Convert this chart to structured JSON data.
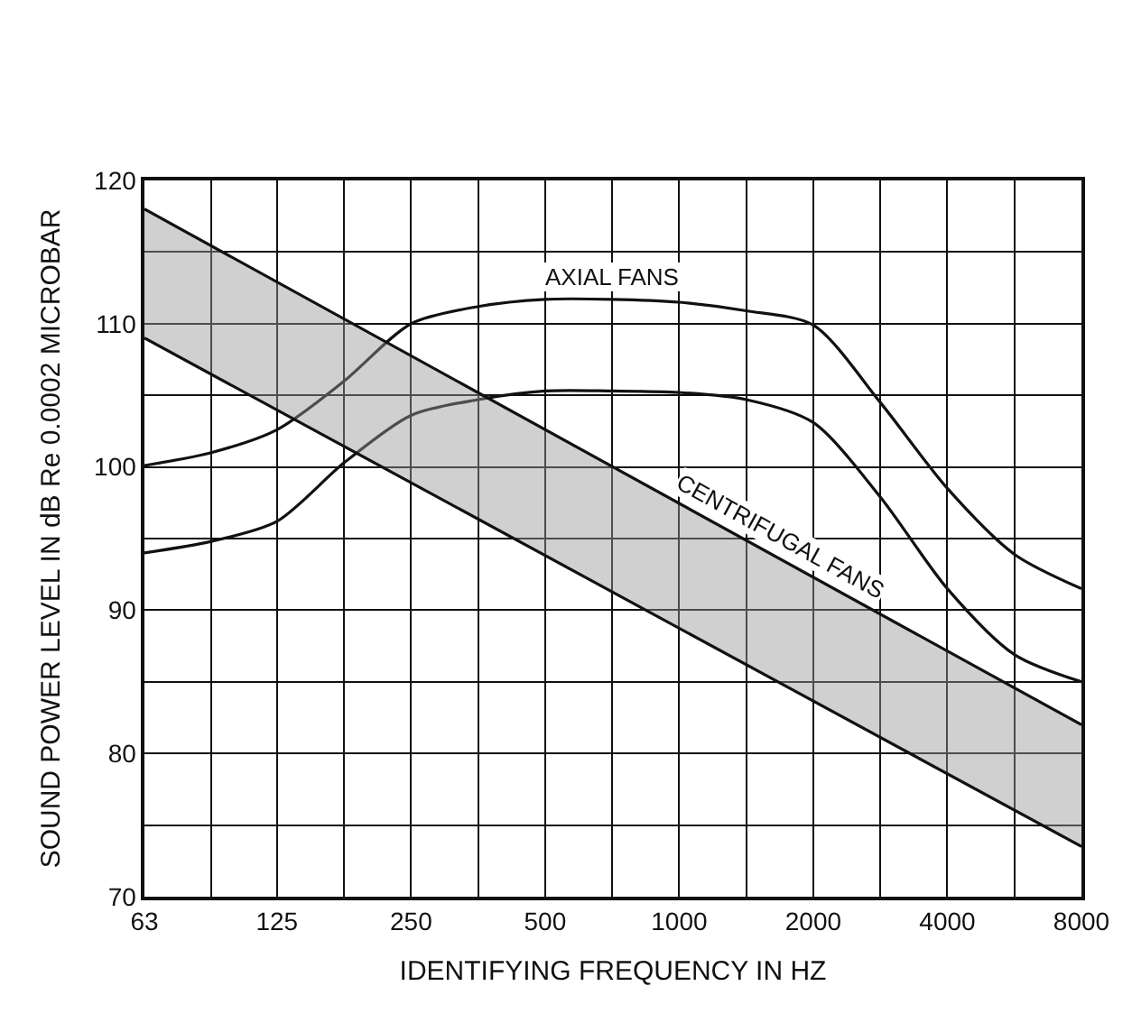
{
  "chart_data": {
    "type": "line",
    "xlabel": "IDENTIFYING FREQUENCY IN HZ",
    "ylabel": "SOUND POWER LEVEL IN dB Re 0.0002 MICROBAR",
    "log": "x",
    "xlim": [
      63,
      8000
    ],
    "xticks": [
      63,
      {
        "value": 89,
        "label": null
      },
      125,
      {
        "value": 177,
        "label": null
      },
      250,
      {
        "value": 354,
        "label": null
      },
      500,
      {
        "value": 707,
        "label": null
      },
      1000,
      {
        "value": 1414,
        "label": null
      },
      2000,
      {
        "value": 2828,
        "label": null
      },
      4000,
      {
        "value": 5657,
        "label": null
      },
      8000
    ],
    "ylim": [
      70,
      120
    ],
    "yticks": [
      70,
      {
        "value": 75,
        "label": null
      },
      80,
      {
        "value": 85,
        "label": null
      },
      90,
      {
        "value": 95,
        "label": null
      },
      100,
      {
        "value": 105,
        "label": null
      },
      110,
      {
        "value": 115,
        "label": null
      },
      120
    ],
    "grid": true,
    "legend": false,
    "marker": "none",
    "line_style": "solid",
    "series": [
      {
        "name": "AXIAL FANS",
        "color": "#111111",
        "x": [
          63,
          89,
          125,
          177,
          250,
          354,
          500,
          707,
          1000,
          1414,
          2000,
          2828,
          4000,
          5657,
          8000
        ],
        "values": [
          100.1,
          101,
          102.6,
          106,
          110,
          111.2,
          111.7,
          111.7,
          111.5,
          110.9,
          109.9,
          104.5,
          98.5,
          93.9,
          91.5
        ]
      },
      {
        "color": "#111111",
        "x": [
          63,
          89,
          125,
          177,
          250,
          354,
          500,
          707,
          1000,
          1414,
          2000,
          2828,
          4000,
          5657,
          8000
        ],
        "values": [
          94,
          94.8,
          96.2,
          100.3,
          103.6,
          104.7,
          105.3,
          105.3,
          105.2,
          104.7,
          103.1,
          97.9,
          91.5,
          86.9,
          85
        ]
      },
      {
        "name": "CENTRIFUGAL FANS",
        "color": "#111111",
        "x": [
          63,
          8000
        ],
        "values": [
          118,
          82
        ],
        "upper": [
          118,
          82
        ],
        "lower": [
          109,
          73.5
        ]
      },
      {
        "color": "#111111",
        "x": [
          63,
          8000
        ],
        "values": [
          109,
          73.5
        ]
      }
    ]
  }
}
